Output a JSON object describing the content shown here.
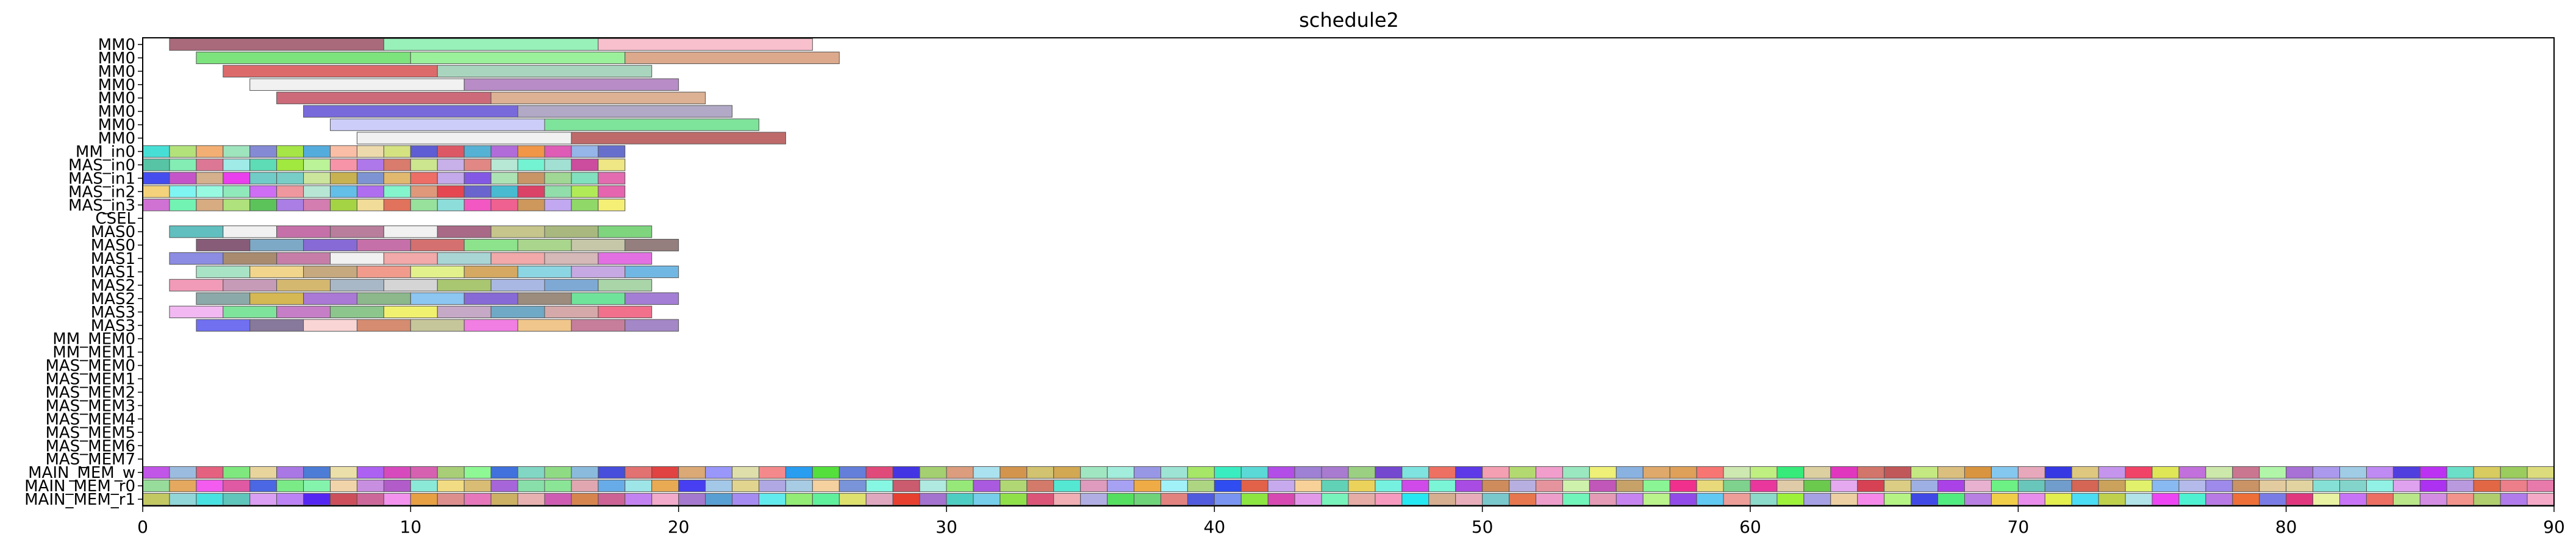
{
  "chart_data": {
    "type": "gantt",
    "title": "schedule2",
    "xlabel": "",
    "ylabel": "",
    "xlim": [
      0,
      90
    ],
    "xticks": [
      0,
      10,
      20,
      30,
      40,
      50,
      60,
      70,
      80,
      90
    ],
    "grid": false,
    "legend": "none",
    "rows": [
      "MM0",
      "MM0",
      "MM0",
      "MM0",
      "MM0",
      "MM0",
      "MM0",
      "MM0",
      "MM_in0",
      "MAS_in0",
      "MAS_in1",
      "MAS_in2",
      "MAS_in3",
      "CSEL",
      "MAS0",
      "MAS0",
      "MAS1",
      "MAS1",
      "MAS2",
      "MAS2",
      "MAS3",
      "MAS3",
      "MM_MEM0",
      "MM_MEM1",
      "MAS_MEM0",
      "MAS_MEM1",
      "MAS_MEM2",
      "MAS_MEM3",
      "MAS_MEM4",
      "MAS_MEM5",
      "MAS_MEM6",
      "MAS_MEM7",
      "MAIN_MEM_w",
      "MAIN_MEM_r0",
      "MAIN_MEM_r1"
    ],
    "segments_explicit": [
      [
        [
          1,
          9,
          "#a05a6e"
        ],
        [
          9,
          17,
          "#8cf0b0"
        ],
        [
          17,
          25,
          "#f7b8c8"
        ]
      ],
      [
        [
          2,
          10,
          "#6fe06f"
        ],
        [
          10,
          18,
          "#90f090"
        ],
        [
          18,
          26,
          "#d8a080"
        ]
      ],
      [
        [
          3,
          11,
          "#d85a5a"
        ],
        [
          11,
          19,
          "#a0d0b8"
        ]
      ],
      [
        [
          4,
          12,
          "#f0f0f0"
        ],
        [
          12,
          20,
          "#b080c0"
        ]
      ],
      [
        [
          5,
          13,
          "#c85a6a"
        ],
        [
          13,
          21,
          "#d8a888"
        ]
      ],
      [
        [
          6,
          14,
          "#6a5ad8"
        ],
        [
          14,
          22,
          "#a8a0c0"
        ]
      ],
      [
        [
          7,
          15,
          "#c8c8f8"
        ],
        [
          15,
          23,
          "#70e090"
        ]
      ],
      [
        [
          8,
          16,
          "#f0f0f0"
        ],
        [
          16,
          24,
          "#b85a5a"
        ]
      ],
      [],
      [],
      [],
      [],
      [],
      [],
      [
        [
          1,
          3,
          "#50b8b8"
        ],
        [
          3,
          5,
          "#f0f0f0"
        ],
        [
          5,
          7,
          "#c060a0"
        ],
        [
          7,
          9,
          "#b07090"
        ],
        [
          9,
          11,
          "#f0f0f0"
        ],
        [
          11,
          13,
          "#a05a7a"
        ],
        [
          13,
          15,
          "#c0c080"
        ],
        [
          15,
          17,
          "#a0b070"
        ],
        [
          17,
          19,
          "#70d070"
        ]
      ],
      [
        [
          2,
          4,
          "#7a4a6a"
        ],
        [
          4,
          6,
          "#70a0c0"
        ],
        [
          6,
          8,
          "#7a5ad0"
        ],
        [
          8,
          10,
          "#c060a0"
        ],
        [
          10,
          12,
          "#d06060"
        ],
        [
          12,
          14,
          "#80e080"
        ],
        [
          14,
          16,
          "#a0d080"
        ],
        [
          16,
          18,
          "#c0c0a0"
        ],
        [
          18,
          20,
          "#8a7070"
        ]
      ],
      [
        [
          1,
          3,
          "#8080e0"
        ],
        [
          3,
          5,
          "#a08060"
        ],
        [
          5,
          7,
          "#c070a0"
        ],
        [
          7,
          9,
          "#f0f0f0"
        ],
        [
          9,
          11,
          "#f0a0a0"
        ],
        [
          11,
          13,
          "#a0d0d0"
        ],
        [
          13,
          15,
          "#f0a0a0"
        ],
        [
          15,
          17,
          "#d0b0b0"
        ],
        [
          17,
          19,
          "#e060e0"
        ]
      ],
      [
        [
          2,
          4,
          "#a0e0c0"
        ],
        [
          4,
          6,
          "#f0d080"
        ],
        [
          6,
          8,
          "#c0a070"
        ],
        [
          8,
          10,
          "#f09080"
        ],
        [
          10,
          12,
          "#e0f080"
        ],
        [
          12,
          14,
          "#d0a050"
        ],
        [
          14,
          16,
          "#80d0e0"
        ],
        [
          16,
          18,
          "#c0a0e0"
        ],
        [
          18,
          20,
          "#60b0e0"
        ]
      ],
      [
        [
          1,
          3,
          "#f090b0"
        ],
        [
          3,
          5,
          "#c090b0"
        ],
        [
          5,
          7,
          "#d0b060"
        ],
        [
          7,
          9,
          "#a0b0c0"
        ],
        [
          9,
          11,
          "#d0d0d0"
        ],
        [
          11,
          13,
          "#a0c060"
        ],
        [
          13,
          15,
          "#a0b0e0"
        ],
        [
          15,
          17,
          "#70a0d0"
        ],
        [
          17,
          19,
          "#a0d0a0"
        ]
      ],
      [
        [
          2,
          4,
          "#80a0a0"
        ],
        [
          4,
          6,
          "#d0b040"
        ],
        [
          6,
          8,
          "#a06ad0"
        ],
        [
          8,
          10,
          "#80b080"
        ],
        [
          10,
          12,
          "#80c0f0"
        ],
        [
          12,
          14,
          "#7a5ad0"
        ],
        [
          14,
          16,
          "#908070"
        ],
        [
          16,
          18,
          "#60e090"
        ],
        [
          18,
          20,
          "#9a70d0"
        ]
      ],
      [
        [
          1,
          3,
          "#f0b0f0"
        ],
        [
          3,
          5,
          "#70e090"
        ],
        [
          5,
          7,
          "#c070c0"
        ],
        [
          7,
          9,
          "#80c080"
        ],
        [
          9,
          11,
          "#f0f060"
        ],
        [
          11,
          13,
          "#c0a0c0"
        ],
        [
          13,
          15,
          "#60a0c0"
        ],
        [
          15,
          17,
          "#d0a0a0"
        ],
        [
          17,
          19,
          "#f06080"
        ]
      ],
      [
        [
          2,
          4,
          "#6060f0"
        ],
        [
          4,
          6,
          "#7a6a90"
        ],
        [
          6,
          8,
          "#f8d0d0"
        ],
        [
          8,
          10,
          "#d08060"
        ],
        [
          10,
          12,
          "#c0c090"
        ],
        [
          12,
          14,
          "#f070e0"
        ],
        [
          14,
          16,
          "#f0c080"
        ],
        [
          16,
          18,
          "#c07090"
        ],
        [
          18,
          20,
          "#9a7ac0"
        ]
      ],
      [],
      [],
      [],
      [],
      [],
      [],
      [],
      [],
      [],
      [],
      [],
      [],
      []
    ]
  }
}
